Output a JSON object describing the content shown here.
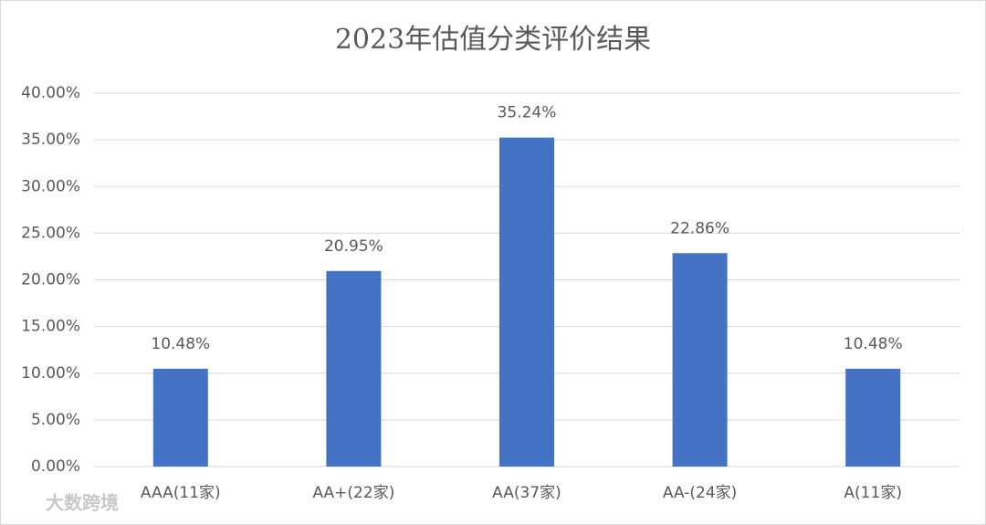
{
  "chart_data": {
    "type": "bar",
    "title": "2023年估值分类评价结果",
    "categories": [
      "AAA(11家)",
      "AA+(22家)",
      "AA(37家)",
      "AA-(24家)",
      "A(11家)"
    ],
    "values": [
      10.48,
      20.95,
      35.24,
      22.86,
      10.48
    ],
    "value_labels": [
      "10.48%",
      "20.95%",
      "35.24%",
      "22.86%",
      "10.48%"
    ],
    "color": "#4472c4",
    "ylim": [
      0,
      40
    ],
    "yticks": [
      {
        "value": 0,
        "label": "0.00%"
      },
      {
        "value": 5,
        "label": "5.00%"
      },
      {
        "value": 10,
        "label": "10.00%"
      },
      {
        "value": 15,
        "label": "15.00%"
      },
      {
        "value": 20,
        "label": "20.00%"
      },
      {
        "value": 25,
        "label": "25.00%"
      },
      {
        "value": 30,
        "label": "30.00%"
      },
      {
        "value": 35,
        "label": "35.00%"
      },
      {
        "value": 40,
        "label": "40.00%"
      }
    ],
    "grid": true,
    "watermark": "大数跨境"
  }
}
